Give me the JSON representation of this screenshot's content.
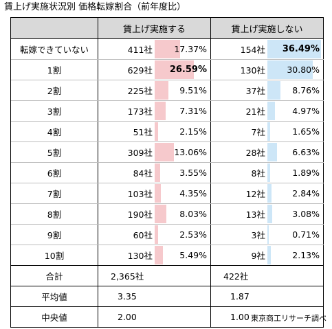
{
  "title": "賃上げ実施状況別 価格転嫁割合（前年度比）",
  "source": "東京商工リサーチ調べ",
  "colors": {
    "implemented_bar": "#f6c9cc",
    "not_implemented_bar": "#cde6f7",
    "header_bg": "#d9d9d9"
  },
  "headers": {
    "label": "",
    "implemented": "賃上げ実施する",
    "not_implemented": "賃上げ実施しない"
  },
  "rows": [
    {
      "label": "転嫁できていない",
      "implemented": {
        "count": "411社",
        "pct": "17.37%",
        "value": 17.37,
        "bold": false
      },
      "not_implemented": {
        "count": "154社",
        "pct": "36.49%",
        "value": 36.49,
        "bold": true
      }
    },
    {
      "label": "1割",
      "implemented": {
        "count": "629社",
        "pct": "26.59%",
        "value": 26.59,
        "bold": true
      },
      "not_implemented": {
        "count": "130社",
        "pct": "30.80%",
        "value": 30.8,
        "bold": false
      }
    },
    {
      "label": "2割",
      "implemented": {
        "count": "225社",
        "pct": "9.51%",
        "value": 9.51,
        "bold": false
      },
      "not_implemented": {
        "count": "37社",
        "pct": "8.76%",
        "value": 8.76,
        "bold": false
      }
    },
    {
      "label": "3割",
      "implemented": {
        "count": "173社",
        "pct": "7.31%",
        "value": 7.31,
        "bold": false
      },
      "not_implemented": {
        "count": "21社",
        "pct": "4.97%",
        "value": 4.97,
        "bold": false
      }
    },
    {
      "label": "4割",
      "implemented": {
        "count": "51社",
        "pct": "2.15%",
        "value": 2.15,
        "bold": false
      },
      "not_implemented": {
        "count": "7社",
        "pct": "1.65%",
        "value": 1.65,
        "bold": false
      }
    },
    {
      "label": "5割",
      "implemented": {
        "count": "309社",
        "pct": "13.06%",
        "value": 13.06,
        "bold": false
      },
      "not_implemented": {
        "count": "28社",
        "pct": "6.63%",
        "value": 6.63,
        "bold": false
      }
    },
    {
      "label": "6割",
      "implemented": {
        "count": "84社",
        "pct": "3.55%",
        "value": 3.55,
        "bold": false
      },
      "not_implemented": {
        "count": "8社",
        "pct": "1.89%",
        "value": 1.89,
        "bold": false
      }
    },
    {
      "label": "7割",
      "implemented": {
        "count": "103社",
        "pct": "4.35%",
        "value": 4.35,
        "bold": false
      },
      "not_implemented": {
        "count": "12社",
        "pct": "2.84%",
        "value": 2.84,
        "bold": false
      }
    },
    {
      "label": "8割",
      "implemented": {
        "count": "190社",
        "pct": "8.03%",
        "value": 8.03,
        "bold": false
      },
      "not_implemented": {
        "count": "13社",
        "pct": "3.08%",
        "value": 3.08,
        "bold": false
      }
    },
    {
      "label": "9割",
      "implemented": {
        "count": "60社",
        "pct": "2.53%",
        "value": 2.53,
        "bold": false
      },
      "not_implemented": {
        "count": "3社",
        "pct": "0.71%",
        "value": 0.71,
        "bold": false
      }
    },
    {
      "label": "10割",
      "implemented": {
        "count": "130社",
        "pct": "5.49%",
        "value": 5.49,
        "bold": false
      },
      "not_implemented": {
        "count": "9社",
        "pct": "2.13%",
        "value": 2.13,
        "bold": false
      }
    }
  ],
  "summary": [
    {
      "label": "合計",
      "implemented": "2,365社",
      "not_implemented": "422社"
    },
    {
      "label": "平均値",
      "implemented": "3.35",
      "not_implemented": "1.87"
    },
    {
      "label": "中央値",
      "implemented": "2.00",
      "not_implemented": "1.00"
    }
  ]
}
